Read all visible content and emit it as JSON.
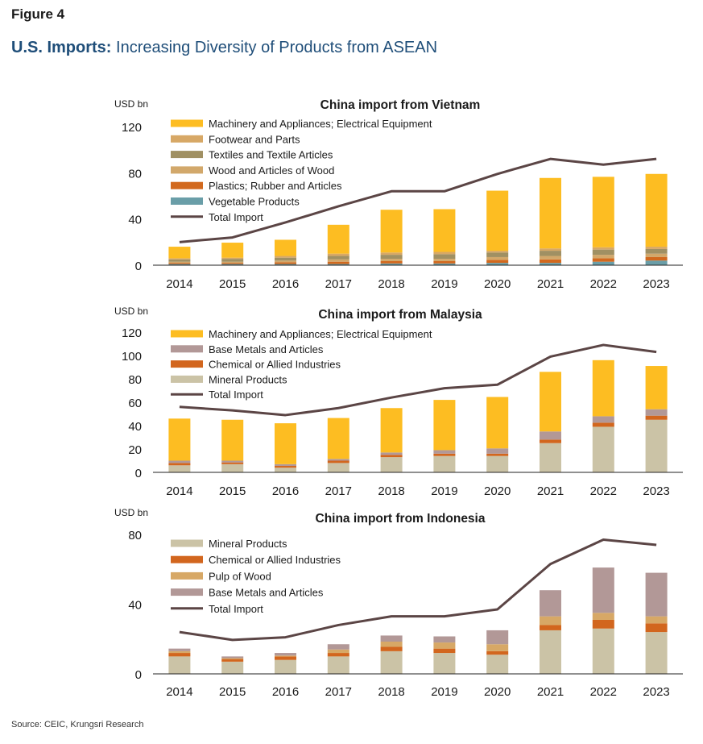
{
  "figure_label": "Figure 4",
  "title_bold": "U.S. Imports:",
  "title_rest": "Increasing Diversity of Products from ASEAN",
  "source": "Source: CEIC, Krungsri Research",
  "colors": {
    "Machinery and Appliances; Electrical Equipment": "#fdbd22",
    "Footwear and Parts": "#d7a866",
    "Textiles and Textile Articles": "#a09063",
    "Wood and Articles of Wood": "#d2a86b",
    "Plastics; Rubber and Articles": "#d2691e",
    "Vegetable Products": "#6a9ea8",
    "Base Metals and Articles": "#b29897",
    "Chemical or  Allied Industries": "#d2661e",
    "Mineral Products": "#cbc3a6",
    "Pulp of Wood": "#d7a866",
    "Total Import": "#5b4545"
  },
  "chart_data": [
    {
      "type": "bar",
      "stacked": true,
      "title": "China import from Vietnam",
      "ylabel": "USD bn",
      "ylim": [
        0,
        120
      ],
      "yticks": [
        0,
        40,
        80,
        120
      ],
      "categories": [
        "2014",
        "2015",
        "2016",
        "2017",
        "2018",
        "2019",
        "2020",
        "2021",
        "2022",
        "2023"
      ],
      "legend": [
        "Machinery and Appliances; Electrical Equipment",
        "Footwear and Parts",
        "Textiles and Textile Articles",
        "Wood and Articles of Wood",
        "Plastics; Rubber and Articles",
        "Vegetable Products",
        "Total Import"
      ],
      "series": [
        {
          "name": "Vegetable Products",
          "values": [
            1,
            1,
            1,
            1,
            1.5,
            1.5,
            2,
            2,
            3,
            4
          ]
        },
        {
          "name": "Plastics; Rubber and Articles",
          "values": [
            1,
            1,
            1.5,
            2,
            2,
            2,
            2.5,
            3,
            3,
            3
          ]
        },
        {
          "name": "Wood and Articles of Wood",
          "values": [
            1,
            1,
            1.5,
            2,
            2,
            2,
            2.5,
            3,
            3,
            3
          ]
        },
        {
          "name": "Textiles and Textile Articles",
          "values": [
            2,
            2.5,
            2.5,
            3,
            3.5,
            4,
            4,
            4.5,
            4.5,
            4
          ]
        },
        {
          "name": "Footwear and Parts",
          "values": [
            1,
            1,
            1.5,
            2,
            2,
            2,
            1.5,
            2,
            2,
            2
          ]
        },
        {
          "name": "Machinery and Appliances; Electrical Equipment",
          "values": [
            10,
            13,
            14,
            25,
            37,
            37,
            52,
            61,
            61,
            63
          ]
        }
      ],
      "line": {
        "name": "Total Import",
        "values": [
          20,
          24,
          37,
          51,
          64,
          64,
          79,
          92,
          87,
          92
        ]
      }
    },
    {
      "type": "bar",
      "stacked": true,
      "title": "China import from Malaysia",
      "ylabel": "USD bn",
      "ylim": [
        0,
        120
      ],
      "yticks": [
        0,
        20,
        40,
        60,
        80,
        100,
        120
      ],
      "categories": [
        "2014",
        "2015",
        "2016",
        "2017",
        "2018",
        "2019",
        "2020",
        "2021",
        "2022",
        "2023"
      ],
      "legend": [
        "Machinery and Appliances; Electrical Equipment",
        "Base Metals and Articles",
        "Chemical or  Allied Industries",
        "Mineral Products",
        "Total Import"
      ],
      "series": [
        {
          "name": "Mineral Products",
          "values": [
            6,
            7,
            4,
            8,
            13,
            14,
            14,
            25,
            39,
            45
          ]
        },
        {
          "name": "Chemical or  Allied Industries",
          "values": [
            2,
            1.5,
            1.5,
            2,
            2,
            2,
            2,
            3,
            3.5,
            3.5
          ]
        },
        {
          "name": "Base Metals and Articles",
          "values": [
            2,
            1.5,
            1.5,
            1.5,
            2,
            3,
            4.5,
            7,
            5.5,
            5.5
          ]
        },
        {
          "name": "Machinery and Appliances; Electrical Equipment",
          "values": [
            36,
            35,
            35,
            35,
            38,
            43,
            44,
            51,
            48,
            37
          ]
        }
      ],
      "line": {
        "name": "Total Import",
        "values": [
          56,
          53,
          49,
          55,
          64,
          72,
          75,
          99,
          109,
          103
        ]
      }
    },
    {
      "type": "bar",
      "stacked": true,
      "title": "China import from Indonesia",
      "ylabel": "USD bn",
      "ylim": [
        0,
        80
      ],
      "yticks": [
        0,
        40,
        80
      ],
      "categories": [
        "2014",
        "2015",
        "2016",
        "2017",
        "2018",
        "2019",
        "2020",
        "2021",
        "2022",
        "2023"
      ],
      "legend": [
        "Mineral Products",
        "Chemical or  Allied Industries",
        "Pulp of Wood",
        "Base Metals and Articles",
        "Total Import"
      ],
      "series": [
        {
          "name": "Mineral Products",
          "values": [
            10,
            7,
            8,
            10,
            13,
            12,
            11,
            25,
            26,
            24
          ]
        },
        {
          "name": "Chemical or  Allied Industries",
          "values": [
            2,
            1.5,
            2,
            2,
            2.5,
            2.5,
            2,
            3,
            5,
            5
          ]
        },
        {
          "name": "Pulp of Wood",
          "values": [
            1,
            0.5,
            0.5,
            2,
            3,
            3.5,
            4,
            5,
            4,
            4
          ]
        },
        {
          "name": "Base Metals and Articles",
          "values": [
            1.5,
            1,
            1.5,
            3,
            3.5,
            3.5,
            8,
            15,
            26,
            25
          ]
        }
      ],
      "line": {
        "name": "Total Import",
        "values": [
          24,
          19.5,
          21,
          28,
          33,
          33,
          37,
          63,
          77,
          74
        ]
      }
    }
  ]
}
